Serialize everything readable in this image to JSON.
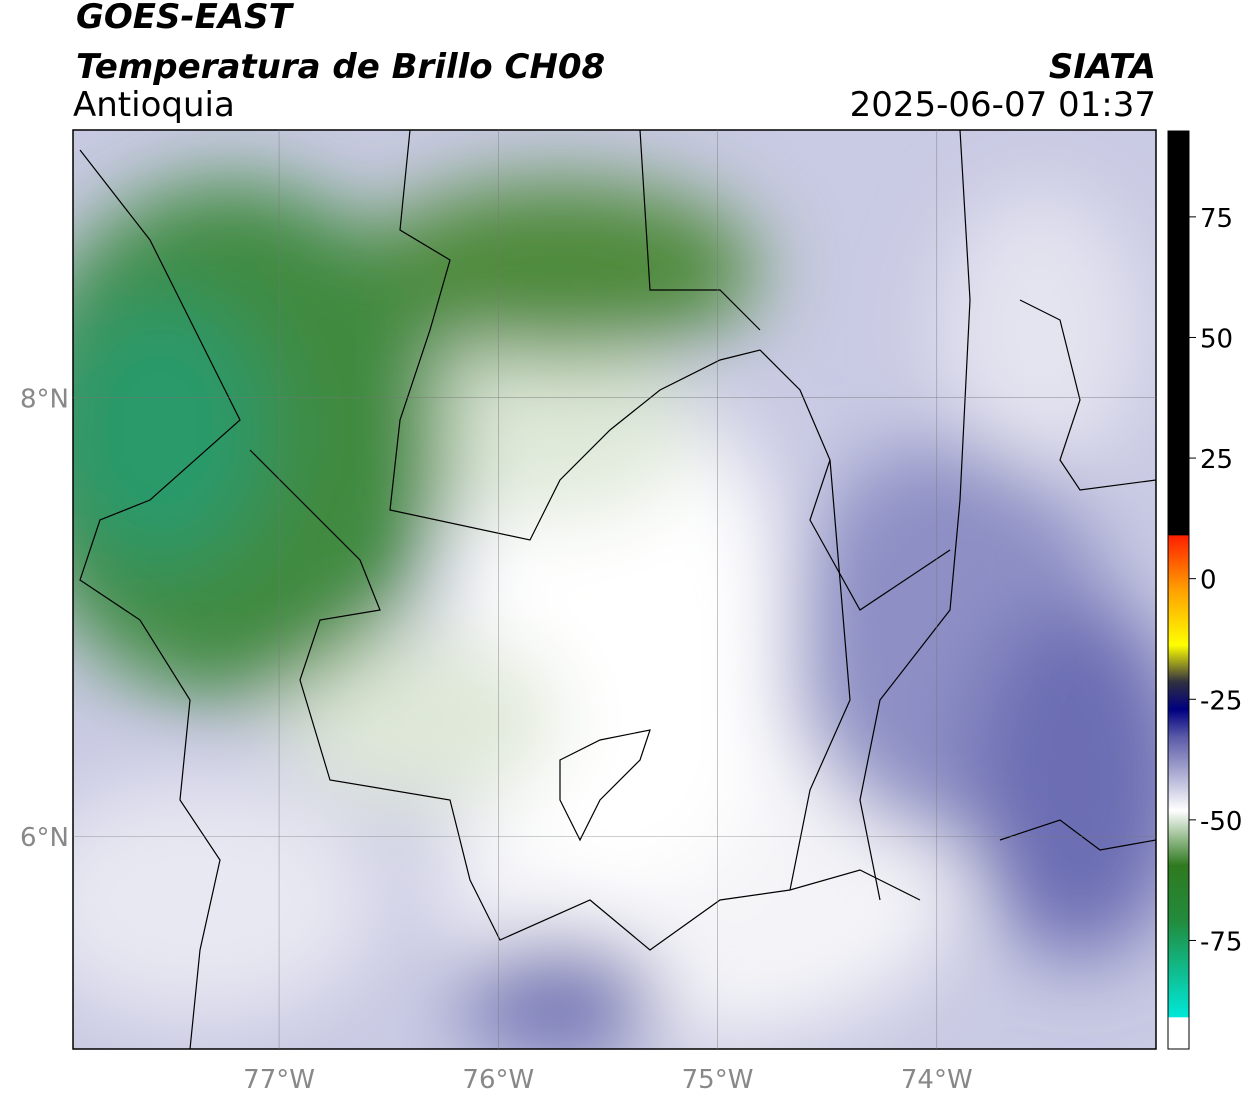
{
  "header": {
    "title": "GOES-EAST",
    "subtitle": "Temperatura de Brillo CH08",
    "region": "Antioquia",
    "source": "SIATA",
    "datetime": "2025-06-07 01:37"
  },
  "map": {
    "xlim": [
      -77.94,
      -73.0
    ],
    "ylim": [
      5.03,
      9.22
    ],
    "xticks": [
      {
        "value": -77,
        "label": "77°W"
      },
      {
        "value": -76,
        "label": "76°W"
      },
      {
        "value": -75,
        "label": "75°W"
      },
      {
        "value": -74,
        "label": "74°W"
      }
    ],
    "yticks": [
      {
        "value": 8,
        "label": "8°N"
      },
      {
        "value": 6,
        "label": "6°N"
      }
    ],
    "grid": true
  },
  "colorbar": {
    "ylim": [
      -97.5,
      92.8
    ],
    "yticks": [
      75,
      50,
      25,
      0,
      -25,
      -50,
      -75
    ]
  }
}
